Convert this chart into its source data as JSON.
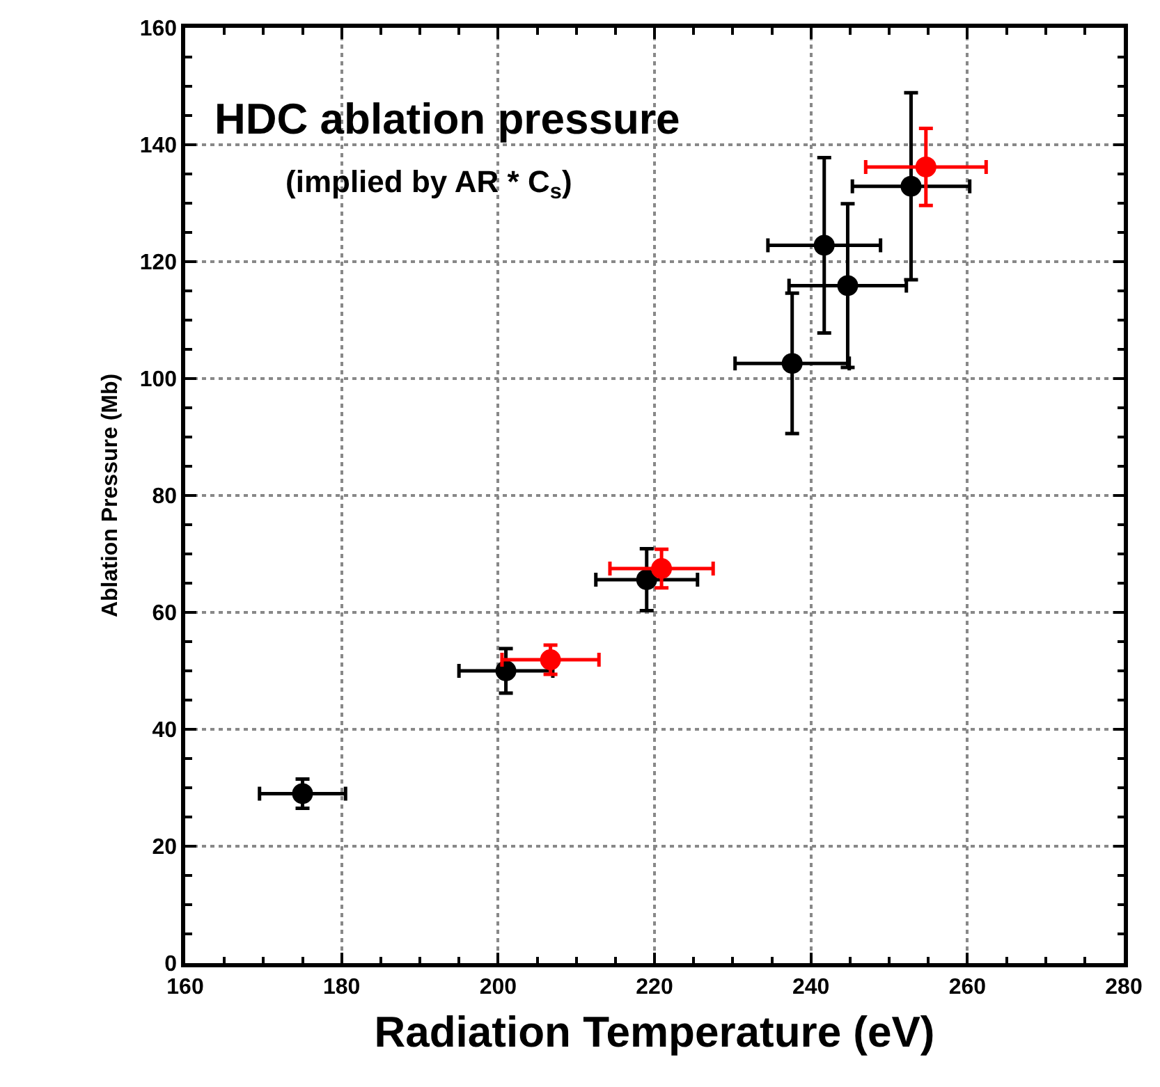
{
  "chart_data": {
    "type": "scatter",
    "title": "HDC ablation pressure",
    "subtitle": "(implied by AR * C$_{s}$)",
    "xlabel": "Radiation Temperature (eV)",
    "ylabel": "Ablation Pressure (Mb)",
    "series": [
      {
        "color": "#000000",
        "x": [
          175,
          201,
          219,
          237.6,
          241.7,
          244.7,
          252.8
        ],
        "values": [
          29,
          50,
          65.6,
          102.6,
          122.8,
          115.9,
          132.9
        ],
        "errors": [
          2.5,
          3.8,
          5.3,
          12,
          15,
          14,
          16
        ],
        "xerrors": [
          5.5,
          6,
          6.5,
          7.3,
          7.2,
          7.5,
          7.5
        ]
      },
      {
        "color": "#ff0000",
        "x": [
          206.7,
          220.9,
          254.7
        ],
        "values": [
          51.9,
          67.5,
          136.2
        ],
        "errors": [
          2.5,
          3.3,
          6.6
        ],
        "xerrors": [
          6.2,
          6.6,
          7.7
        ]
      }
    ],
    "xlim": [
      160,
      280
    ],
    "xticks": [
      160,
      180,
      200,
      220,
      240,
      260,
      280
    ],
    "ylim": [
      0,
      160
    ],
    "yticks": [
      0,
      20,
      40,
      60,
      80,
      100,
      120,
      140,
      160
    ],
    "grid": true,
    "marker": "circle"
  }
}
